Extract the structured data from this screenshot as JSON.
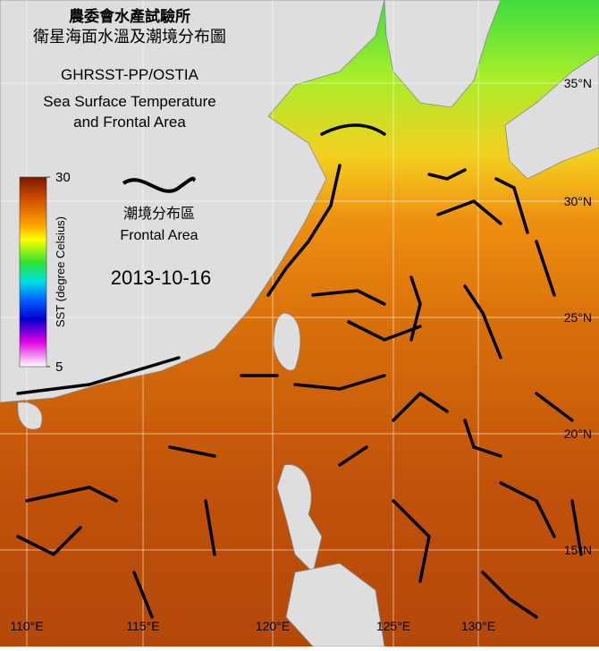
{
  "header": {
    "title_zh": "農委會水產試驗所",
    "subtitle_zh": "衛星海面水溫及潮境分布圖",
    "product": "GHRSST-PP/OSTIA",
    "title_en_1": "Sea Surface Temperature",
    "title_en_2": "and Frontal Area"
  },
  "legend": {
    "label_zh": "潮境分布區",
    "label_en": "Frontal Area"
  },
  "date": "2013-10-16",
  "colorbar": {
    "label": "SST (degree Celsius)",
    "range": [
      5,
      30
    ],
    "ticks": [
      5,
      30
    ]
  },
  "grid": {
    "latitudes": [
      "35°N",
      "30°N",
      "25°N",
      "20°N",
      "15°N"
    ],
    "longitudes": [
      "110°E",
      "115°E",
      "120°E",
      "125°E",
      "130°E"
    ]
  }
}
